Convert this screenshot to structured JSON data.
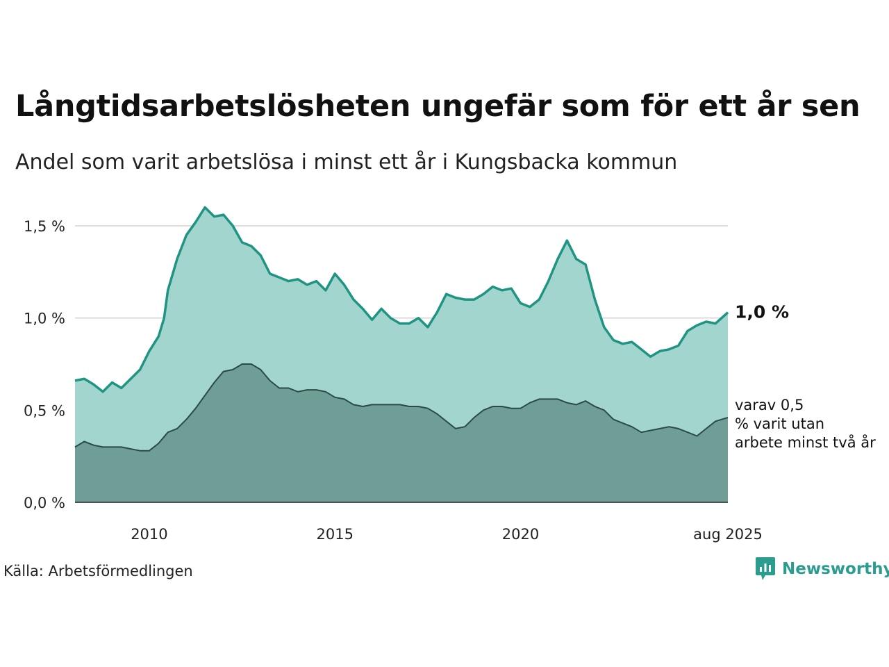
{
  "title": "Långtidsarbetslösheten ungefär som för ett år sen",
  "subtitle": "Andel som varit arbetslösa i minst ett år i Kungsbacka kommun",
  "source": "Källa: Arbetsförmedlingen",
  "brand": {
    "name": "Newsworthy",
    "icon": "newsworthy-logo-icon"
  },
  "colors": {
    "total_line": "#1f9482",
    "total_fill": "#a3d5cf",
    "long_line": "#2c4a45",
    "long_fill": "#6f9e97",
    "grid": "#dddddd"
  },
  "chart_data": {
    "type": "area",
    "x_unit": "decimal year",
    "xlim": [
      2008.0,
      2025.583
    ],
    "ylim": [
      0,
      1.6
    ],
    "yticks": [
      0,
      0.5,
      1.0,
      1.5
    ],
    "ytick_labels": [
      "0,0 %",
      "0,5 %",
      "1,0 %",
      "1,5 %"
    ],
    "xticks": [
      2010,
      2015,
      2020,
      2025.583
    ],
    "xtick_labels": [
      "2010",
      "2015",
      "2020",
      "aug 2025"
    ],
    "grid": true,
    "series": [
      {
        "label": "1,0 %",
        "last_value": 1.03,
        "points": [
          [
            2008.0,
            0.66
          ],
          [
            2008.25,
            0.67
          ],
          [
            2008.5,
            0.64
          ],
          [
            2008.75,
            0.6
          ],
          [
            2009.0,
            0.65
          ],
          [
            2009.25,
            0.62
          ],
          [
            2009.5,
            0.67
          ],
          [
            2009.75,
            0.72
          ],
          [
            2010.0,
            0.82
          ],
          [
            2010.25,
            0.9
          ],
          [
            2010.4,
            1.0
          ],
          [
            2010.5,
            1.15
          ],
          [
            2010.75,
            1.32
          ],
          [
            2011.0,
            1.45
          ],
          [
            2011.25,
            1.52
          ],
          [
            2011.5,
            1.6
          ],
          [
            2011.75,
            1.55
          ],
          [
            2012.0,
            1.56
          ],
          [
            2012.25,
            1.5
          ],
          [
            2012.5,
            1.41
          ],
          [
            2012.75,
            1.39
          ],
          [
            2013.0,
            1.34
          ],
          [
            2013.25,
            1.24
          ],
          [
            2013.5,
            1.22
          ],
          [
            2013.75,
            1.2
          ],
          [
            2014.0,
            1.21
          ],
          [
            2014.25,
            1.18
          ],
          [
            2014.5,
            1.2
          ],
          [
            2014.75,
            1.15
          ],
          [
            2015.0,
            1.24
          ],
          [
            2015.25,
            1.18
          ],
          [
            2015.5,
            1.1
          ],
          [
            2015.75,
            1.05
          ],
          [
            2016.0,
            0.99
          ],
          [
            2016.25,
            1.05
          ],
          [
            2016.5,
            1.0
          ],
          [
            2016.75,
            0.97
          ],
          [
            2017.0,
            0.97
          ],
          [
            2017.25,
            1.0
          ],
          [
            2017.5,
            0.95
          ],
          [
            2017.75,
            1.03
          ],
          [
            2018.0,
            1.13
          ],
          [
            2018.25,
            1.11
          ],
          [
            2018.5,
            1.1
          ],
          [
            2018.75,
            1.1
          ],
          [
            2019.0,
            1.13
          ],
          [
            2019.25,
            1.17
          ],
          [
            2019.5,
            1.15
          ],
          [
            2019.75,
            1.16
          ],
          [
            2020.0,
            1.08
          ],
          [
            2020.25,
            1.06
          ],
          [
            2020.5,
            1.1
          ],
          [
            2020.75,
            1.2
          ],
          [
            2021.0,
            1.32
          ],
          [
            2021.25,
            1.42
          ],
          [
            2021.5,
            1.32
          ],
          [
            2021.75,
            1.29
          ],
          [
            2022.0,
            1.1
          ],
          [
            2022.25,
            0.95
          ],
          [
            2022.5,
            0.88
          ],
          [
            2022.75,
            0.86
          ],
          [
            2023.0,
            0.87
          ],
          [
            2023.25,
            0.83
          ],
          [
            2023.5,
            0.79
          ],
          [
            2023.75,
            0.82
          ],
          [
            2024.0,
            0.83
          ],
          [
            2024.25,
            0.85
          ],
          [
            2024.5,
            0.93
          ],
          [
            2024.75,
            0.96
          ],
          [
            2025.0,
            0.98
          ],
          [
            2025.25,
            0.97
          ],
          [
            2025.583,
            1.03
          ]
        ]
      },
      {
        "label": "varav 0,5 % varit utan arbete minst två år",
        "last_value": 0.46,
        "points": [
          [
            2008.0,
            0.3
          ],
          [
            2008.25,
            0.33
          ],
          [
            2008.5,
            0.31
          ],
          [
            2008.75,
            0.3
          ],
          [
            2009.0,
            0.3
          ],
          [
            2009.25,
            0.3
          ],
          [
            2009.5,
            0.29
          ],
          [
            2009.75,
            0.28
          ],
          [
            2010.0,
            0.28
          ],
          [
            2010.25,
            0.32
          ],
          [
            2010.5,
            0.38
          ],
          [
            2010.75,
            0.4
          ],
          [
            2011.0,
            0.45
          ],
          [
            2011.25,
            0.51
          ],
          [
            2011.5,
            0.58
          ],
          [
            2011.75,
            0.65
          ],
          [
            2012.0,
            0.71
          ],
          [
            2012.25,
            0.72
          ],
          [
            2012.5,
            0.75
          ],
          [
            2012.75,
            0.75
          ],
          [
            2013.0,
            0.72
          ],
          [
            2013.25,
            0.66
          ],
          [
            2013.5,
            0.62
          ],
          [
            2013.75,
            0.62
          ],
          [
            2014.0,
            0.6
          ],
          [
            2014.25,
            0.61
          ],
          [
            2014.5,
            0.61
          ],
          [
            2014.75,
            0.6
          ],
          [
            2015.0,
            0.57
          ],
          [
            2015.25,
            0.56
          ],
          [
            2015.5,
            0.53
          ],
          [
            2015.75,
            0.52
          ],
          [
            2016.0,
            0.53
          ],
          [
            2016.25,
            0.53
          ],
          [
            2016.5,
            0.53
          ],
          [
            2016.75,
            0.53
          ],
          [
            2017.0,
            0.52
          ],
          [
            2017.25,
            0.52
          ],
          [
            2017.5,
            0.51
          ],
          [
            2017.75,
            0.48
          ],
          [
            2018.0,
            0.44
          ],
          [
            2018.25,
            0.4
          ],
          [
            2018.5,
            0.41
          ],
          [
            2018.75,
            0.46
          ],
          [
            2019.0,
            0.5
          ],
          [
            2019.25,
            0.52
          ],
          [
            2019.5,
            0.52
          ],
          [
            2019.75,
            0.51
          ],
          [
            2020.0,
            0.51
          ],
          [
            2020.25,
            0.54
          ],
          [
            2020.5,
            0.56
          ],
          [
            2020.75,
            0.56
          ],
          [
            2021.0,
            0.56
          ],
          [
            2021.25,
            0.54
          ],
          [
            2021.5,
            0.53
          ],
          [
            2021.75,
            0.55
          ],
          [
            2022.0,
            0.52
          ],
          [
            2022.25,
            0.5
          ],
          [
            2022.5,
            0.45
          ],
          [
            2022.75,
            0.43
          ],
          [
            2023.0,
            0.41
          ],
          [
            2023.25,
            0.38
          ],
          [
            2023.5,
            0.39
          ],
          [
            2023.75,
            0.4
          ],
          [
            2024.0,
            0.41
          ],
          [
            2024.25,
            0.4
          ],
          [
            2024.5,
            0.38
          ],
          [
            2024.75,
            0.36
          ],
          [
            2025.0,
            0.4
          ],
          [
            2025.25,
            0.44
          ],
          [
            2025.583,
            0.46
          ]
        ]
      }
    ]
  }
}
